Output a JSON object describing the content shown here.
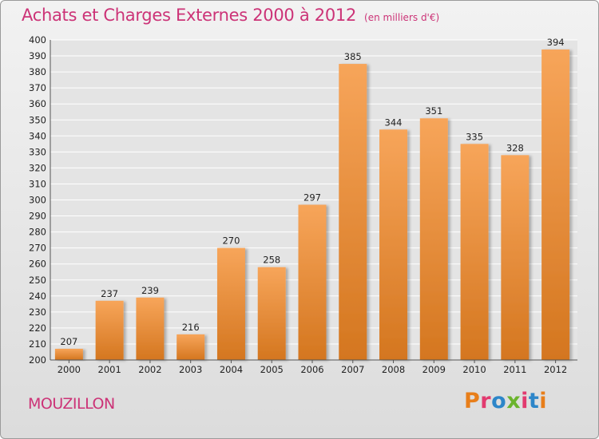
{
  "header": {
    "title": "Achats et Charges Externes 2000 à 2012",
    "subtitle": "(en milliers d'€)"
  },
  "footer": {
    "place": "MOUZILLON",
    "logo_text": "Proxiti",
    "logo_colors": [
      "#e87e1a",
      "#e23a6f",
      "#2d86c9",
      "#6bb42d",
      "#e23a6f",
      "#2d86c9",
      "#e87e1a"
    ]
  },
  "colors": {
    "bar_top": "#f7a55a",
    "bar_bottom": "#d4761f",
    "title": "#cc3377",
    "grid": "#ffffff",
    "axis_text": "#222222"
  },
  "chart_data": {
    "type": "bar",
    "categories": [
      "2000",
      "2001",
      "2002",
      "2003",
      "2004",
      "2005",
      "2006",
      "2007",
      "2008",
      "2009",
      "2010",
      "2011",
      "2012"
    ],
    "values": [
      207,
      237,
      239,
      216,
      270,
      258,
      297,
      385,
      344,
      351,
      335,
      328,
      394
    ],
    "data_labels": [
      "207",
      "237",
      "239",
      "216",
      "270",
      "258",
      "297",
      "385",
      "344",
      "351",
      "335",
      "328",
      "394"
    ],
    "ylim": [
      200,
      400
    ],
    "ytick_step": 10,
    "grid": true
  }
}
